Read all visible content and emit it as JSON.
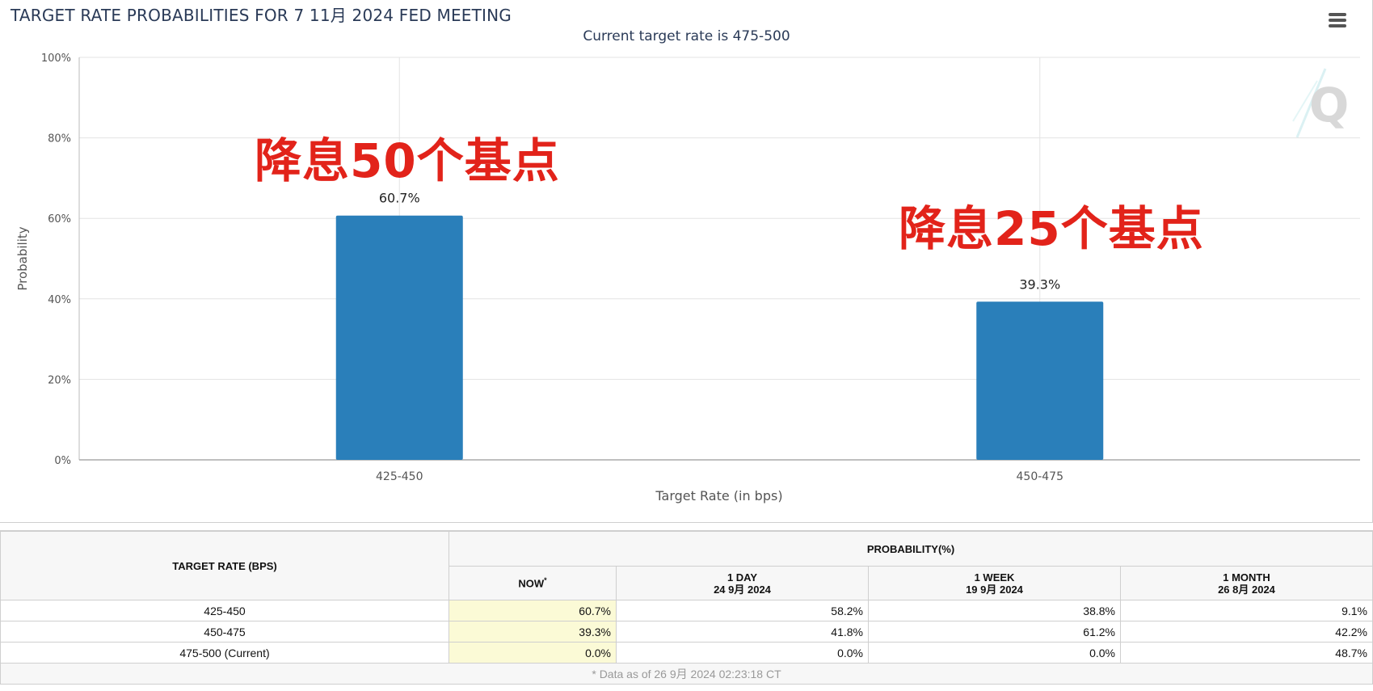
{
  "chart": {
    "title": "TARGET RATE PROBABILITIES FOR 7 11月 2024 FED MEETING",
    "subtitle": "Current target rate is 475-500",
    "annotations": [
      "降息50个基点",
      "降息25个基点"
    ]
  },
  "chart_data": {
    "type": "bar",
    "title": "TARGET RATE PROBABILITIES FOR 7 11月 2024 FED MEETING",
    "subtitle": "Current target rate is 475-500",
    "categories": [
      "425-450",
      "450-475"
    ],
    "values": [
      60.7,
      39.3
    ],
    "data_labels": [
      "60.7%",
      "39.3%"
    ],
    "xlabel": "Target Rate (in bps)",
    "ylabel": "Probability",
    "ylim": [
      0,
      100
    ],
    "yticks": [
      "0%",
      "20%",
      "40%",
      "60%",
      "80%",
      "100%"
    ],
    "ytick_values": [
      0,
      20,
      40,
      60,
      80,
      100
    ],
    "grid": true,
    "bar_color": "#2a7fba"
  },
  "table": {
    "col_rate_header": "TARGET RATE (BPS)",
    "prob_header": "PROBABILITY(%)",
    "now_header": "NOW",
    "now_marker": "*",
    "day_header": "1 DAY",
    "day_date": "24 9月 2024",
    "week_header": "1 WEEK",
    "week_date": "19 9月 2024",
    "month_header": "1 MONTH",
    "month_date": "26 8月 2024",
    "rows": [
      {
        "rate": "425-450",
        "now": "60.7%",
        "day": "58.2%",
        "week": "38.8%",
        "month": "9.1%"
      },
      {
        "rate": "450-475",
        "now": "39.3%",
        "day": "41.8%",
        "week": "61.2%",
        "month": "42.2%"
      },
      {
        "rate": "475-500 (Current)",
        "now": "0.0%",
        "day": "0.0%",
        "week": "0.0%",
        "month": "48.7%"
      }
    ],
    "footnote": "* Data as of 26 9月 2024 02:23:18 CT"
  }
}
